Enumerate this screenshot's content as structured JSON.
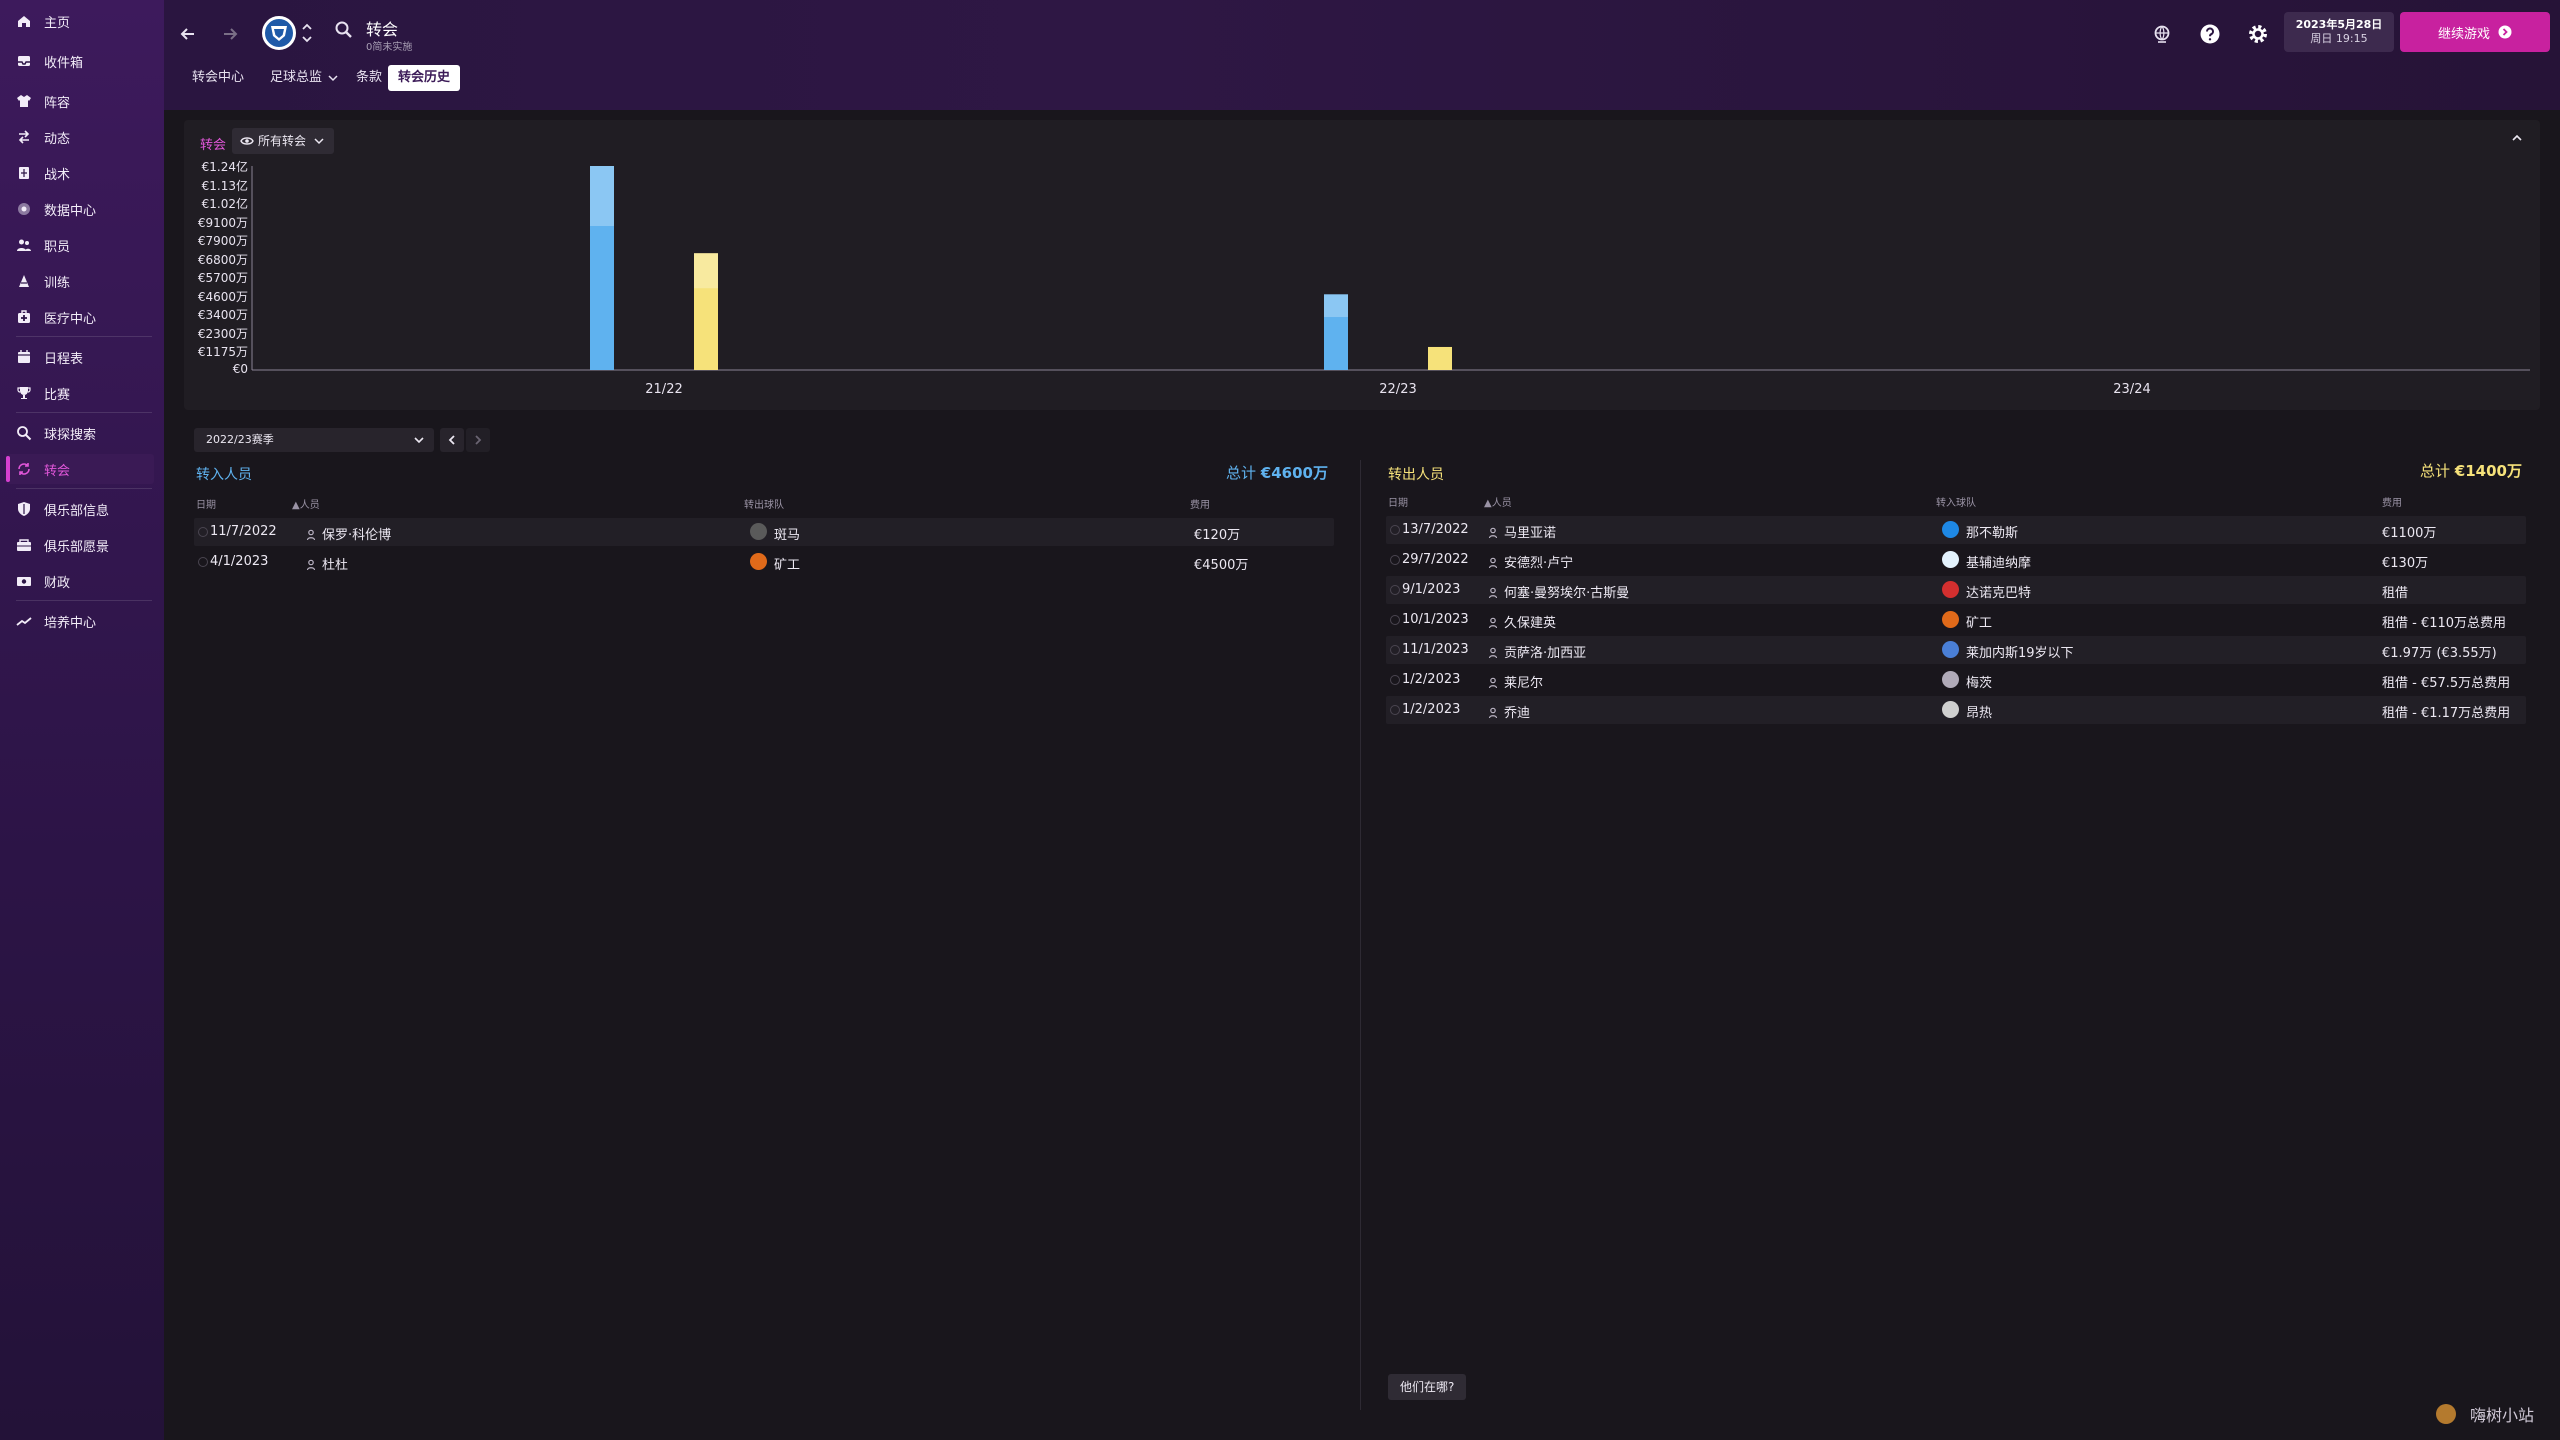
{
  "sidebar": {
    "items": [
      {
        "label": "主页",
        "icon": "home-icon"
      },
      {
        "label": "收件箱",
        "icon": "inbox-icon"
      },
      {
        "label": "阵容",
        "icon": "shirt-icon"
      },
      {
        "label": "动态",
        "icon": "arrows-icon"
      },
      {
        "label": "战术",
        "icon": "tactics-icon"
      },
      {
        "label": "数据中心",
        "icon": "data-icon"
      },
      {
        "label": "职员",
        "icon": "staff-icon"
      },
      {
        "label": "训练",
        "icon": "training-icon"
      },
      {
        "label": "医疗中心",
        "icon": "medical-icon"
      },
      {
        "label": "日程表",
        "icon": "calendar-icon"
      },
      {
        "label": "比赛",
        "icon": "trophy-icon"
      },
      {
        "label": "球探搜索",
        "icon": "search-icon"
      },
      {
        "label": "转会",
        "icon": "transfer-icon"
      },
      {
        "label": "俱乐部信息",
        "icon": "shield-icon"
      },
      {
        "label": "俱乐部愿景",
        "icon": "vision-icon"
      },
      {
        "label": "财政",
        "icon": "money-icon"
      },
      {
        "label": "培养中心",
        "icon": "development-icon"
      }
    ]
  },
  "header": {
    "title": "转会",
    "subtitle": "0简未实施",
    "tabs": [
      {
        "label": "转会中心"
      },
      {
        "label": "足球总监"
      },
      {
        "label": "条款"
      },
      {
        "label": "转会历史"
      }
    ],
    "date_line1": "2023年5月28日",
    "date_line2": "周日 19:15",
    "continue_label": "继续游戏"
  },
  "chart_panel": {
    "legend_label": "转会",
    "filter_label": "所有转会"
  },
  "chart_data": {
    "type": "bar",
    "ylim": [
      0,
      124000000
    ],
    "y_ticks": [
      "€1.24亿",
      "€1.13亿",
      "€1.02亿",
      "€9100万",
      "€7900万",
      "€6800万",
      "€5700万",
      "€4600万",
      "€3400万",
      "€2300万",
      "€1175万",
      "€0"
    ],
    "categories": [
      "21/22",
      "22/23",
      "23/24"
    ],
    "series": [
      {
        "name": "转入",
        "color": "#5fb2ef",
        "values": [
          124000000,
          46000000,
          0
        ]
      },
      {
        "name": "转出",
        "color": "#f6e27a",
        "values": [
          71000000,
          14000000,
          0
        ]
      }
    ]
  },
  "season_select": {
    "value": "2022/23赛季"
  },
  "incoming": {
    "title": "转入人员",
    "total_label": "总计",
    "total_value": "€4600万",
    "columns": [
      "日期",
      "人员",
      "转出球队",
      "费用"
    ],
    "rows": [
      {
        "date": "11/7/2022",
        "name": "保罗·科伦博",
        "club": "斑马",
        "fee": "€120万",
        "badge_color": "#5a5a5a"
      },
      {
        "date": "4/1/2023",
        "name": "杜杜",
        "club": "矿工",
        "fee": "€4500万",
        "badge_color": "#e06a1a"
      }
    ]
  },
  "outgoing": {
    "title": "转出人员",
    "total_label": "总计",
    "total_value": "€1400万",
    "columns": [
      "日期",
      "人员",
      "转入球队",
      "费用"
    ],
    "rows": [
      {
        "date": "13/7/2022",
        "name": "马里亚诺",
        "club": "那不勒斯",
        "fee": "€1100万",
        "badge_color": "#1e88e5"
      },
      {
        "date": "29/7/2022",
        "name": "安德烈·卢宁",
        "club": "基辅迪纳摩",
        "fee": "€130万",
        "badge_color": "#e3f2fd"
      },
      {
        "date": "9/1/2023",
        "name": "何塞·曼努埃尔·古斯曼",
        "club": "达诺克巴特",
        "fee": "租借",
        "badge_color": "#d32f2f"
      },
      {
        "date": "10/1/2023",
        "name": "久保建英",
        "club": "矿工",
        "fee": "租借 - €110万总费用",
        "badge_color": "#e06a1a"
      },
      {
        "date": "11/1/2023",
        "name": "贡萨洛·加西亚",
        "club": "莱加内斯19岁以下",
        "fee": "€1.97万 (€3.55万)",
        "badge_color": "#4a7fd6"
      },
      {
        "date": "1/2/2023",
        "name": "莱尼尔",
        "club": "梅茨",
        "fee": "租借 - €57.5万总费用",
        "badge_color": "#b0aab8"
      },
      {
        "date": "1/2/2023",
        "name": "乔迪",
        "club": "昂热",
        "fee": "租借 - €1.17万总费用",
        "badge_color": "#cfcfcf"
      }
    ]
  },
  "where_button": "他们在哪?",
  "watermark": "嗨树小站"
}
